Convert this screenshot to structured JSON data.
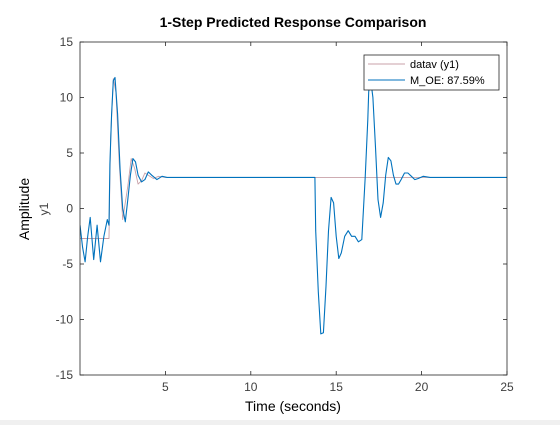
{
  "chart_data": {
    "type": "line",
    "title": "1-Step Predicted Response Comparison",
    "xlabel": "Time (seconds)",
    "ylabel": "Amplitude",
    "channel_label": "y1",
    "xlim": [
      0,
      25
    ],
    "ylim": [
      -15,
      15
    ],
    "xticks": [
      5,
      10,
      15,
      20,
      25
    ],
    "yticks": [
      -15,
      -10,
      -5,
      0,
      5,
      10,
      15
    ],
    "grid": false,
    "legend": {
      "placement": "top-right"
    },
    "series": [
      {
        "name": "datav (y1)",
        "color": "#c8a0a8",
        "x": [
          0.0,
          0.1,
          1.7,
          1.75,
          1.8,
          1.95,
          2.1,
          2.3,
          2.5,
          2.8,
          3.0,
          3.2,
          3.4,
          3.6,
          3.8,
          4.0,
          4.3,
          4.6,
          5.0,
          5.5,
          6.0,
          25.0
        ],
        "y": [
          -2.7,
          -2.7,
          -2.7,
          2.8,
          6.5,
          11.7,
          10.5,
          4.0,
          -1.0,
          2.0,
          4.5,
          3.6,
          2.2,
          2.5,
          3.2,
          3.0,
          2.7,
          2.9,
          2.8,
          2.8,
          2.8,
          2.8
        ]
      },
      {
        "name": "M_OE: 87.59%",
        "color": "#0072bd",
        "x": [
          0.0,
          0.15,
          0.3,
          0.45,
          0.6,
          0.8,
          1.0,
          1.2,
          1.4,
          1.6,
          1.7,
          1.75,
          1.85,
          1.95,
          2.05,
          2.2,
          2.35,
          2.5,
          2.65,
          2.8,
          2.95,
          3.1,
          3.25,
          3.4,
          3.6,
          3.8,
          4.0,
          4.2,
          4.5,
          4.8,
          5.1,
          5.5,
          6.0,
          8.0,
          10.0,
          12.0,
          13.75,
          13.8,
          13.95,
          14.1,
          14.25,
          14.4,
          14.55,
          14.7,
          14.85,
          15.0,
          15.15,
          15.3,
          15.5,
          15.7,
          15.9,
          16.1,
          16.3,
          16.5,
          16.7,
          16.85,
          16.9,
          17.0,
          17.15,
          17.3,
          17.45,
          17.6,
          17.75,
          17.9,
          18.05,
          18.2,
          18.35,
          18.5,
          18.65,
          18.8,
          19.0,
          19.2,
          19.4,
          19.6,
          19.8,
          20.1,
          20.5,
          21.0,
          21.5,
          22.0,
          25.0
        ],
        "y": [
          -1.5,
          -3.5,
          -4.8,
          -2.5,
          -0.8,
          -4.6,
          -1.5,
          -4.8,
          -2.5,
          -1.0,
          -1.5,
          4.0,
          8.5,
          11.5,
          11.8,
          8.5,
          3.5,
          0.0,
          -1.2,
          0.8,
          3.0,
          4.5,
          4.2,
          3.0,
          2.4,
          2.6,
          3.3,
          3.0,
          2.6,
          2.9,
          2.8,
          2.8,
          2.8,
          2.8,
          2.8,
          2.8,
          2.8,
          -2.0,
          -7.5,
          -11.3,
          -11.2,
          -7.0,
          -2.0,
          1.0,
          0.5,
          -2.5,
          -4.5,
          -4.0,
          -2.5,
          -2.0,
          -2.5,
          -2.5,
          -3.0,
          -2.8,
          2.8,
          8.0,
          10.5,
          11.8,
          10.0,
          5.5,
          0.8,
          -0.8,
          0.5,
          3.0,
          4.6,
          4.3,
          3.0,
          2.2,
          2.2,
          2.6,
          3.2,
          3.2,
          2.9,
          2.6,
          2.7,
          2.9,
          2.8,
          2.8,
          2.8,
          2.8,
          2.8
        ]
      }
    ]
  }
}
